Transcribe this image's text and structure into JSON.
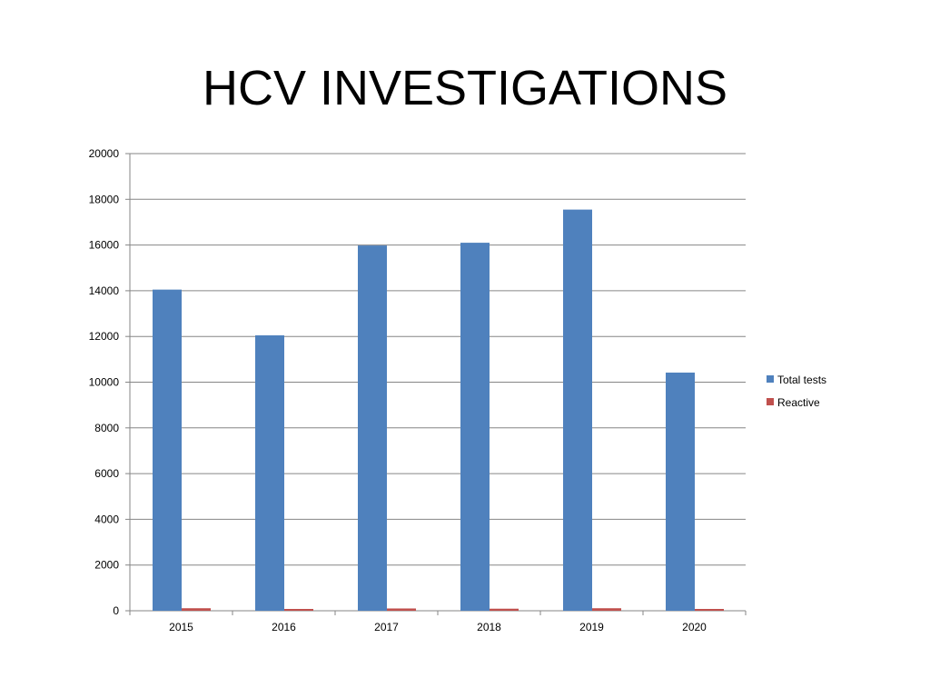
{
  "title": "HCV INVESTIGATIONS",
  "colors": {
    "total_tests": "#4F81BD",
    "reactive": "#C0504D",
    "gridline": "#868686",
    "axis": "#868686"
  },
  "chart_data": {
    "type": "bar",
    "title": "",
    "xlabel": "",
    "ylabel": "",
    "categories": [
      "2015",
      "2016",
      "2017",
      "2018",
      "2019",
      "2020"
    ],
    "series": [
      {
        "name": "Total tests",
        "values": [
          14050,
          12050,
          15980,
          16100,
          17550,
          10420
        ]
      },
      {
        "name": "Reactive",
        "values": [
          110,
          60,
          100,
          90,
          110,
          50
        ]
      }
    ],
    "ylim": [
      0,
      20000
    ],
    "yticks": [
      "0",
      "2000",
      "4000",
      "6000",
      "8000",
      "10000",
      "12000",
      "14000",
      "16000",
      "18000",
      "20000"
    ],
    "grid": true,
    "legend_position": "right"
  }
}
